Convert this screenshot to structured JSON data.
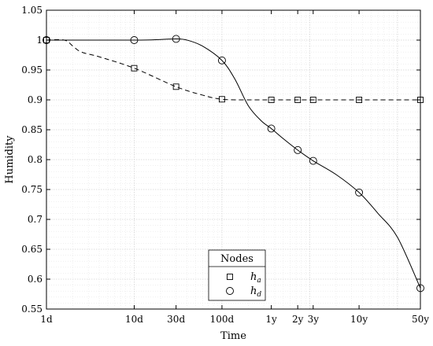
{
  "chart_data": {
    "type": "line",
    "xlabel": "Time",
    "ylabel": "Humidity",
    "x_scale": "log",
    "x_ticks": [
      {
        "label": "1d",
        "days": 1
      },
      {
        "label": "10d",
        "days": 10
      },
      {
        "label": "30d",
        "days": 30
      },
      {
        "label": "100d",
        "days": 100
      },
      {
        "label": "1y",
        "days": 365
      },
      {
        "label": "2y",
        "days": 730
      },
      {
        "label": "3y",
        "days": 1095
      },
      {
        "label": "10y",
        "days": 3650
      },
      {
        "label": "50y",
        "days": 18250
      }
    ],
    "y_ticks": [
      "0.55",
      "0.6",
      "0.65",
      "0.7",
      "0.75",
      "0.8",
      "0.85",
      "0.9",
      "0.95",
      "1",
      "1.05"
    ],
    "ylim": [
      0.55,
      1.05
    ],
    "grid": true,
    "legend": {
      "title": "Nodes",
      "position": "bottom-center",
      "entries": [
        {
          "base": "h",
          "sub": "a",
          "marker": "square",
          "series": 0
        },
        {
          "base": "h",
          "sub": "d",
          "marker": "circle",
          "series": 1
        }
      ]
    },
    "series": [
      {
        "name": "h_a",
        "marker": "square",
        "line_style": "dashed",
        "color": "#000000",
        "curve": [
          [
            1,
            1.0
          ],
          [
            1.6,
            1.0
          ],
          [
            2,
            0.99
          ],
          [
            2.5,
            0.98
          ],
          [
            4,
            0.972
          ],
          [
            10,
            0.953
          ],
          [
            30,
            0.922
          ],
          [
            60,
            0.908
          ],
          [
            100,
            0.901
          ],
          [
            200,
            0.9
          ],
          [
            365,
            0.9
          ],
          [
            18250,
            0.9
          ]
        ],
        "markers": [
          [
            1,
            1.0
          ],
          [
            10,
            0.953
          ],
          [
            30,
            0.922
          ],
          [
            100,
            0.901
          ],
          [
            365,
            0.9
          ],
          [
            730,
            0.9
          ],
          [
            1095,
            0.9
          ],
          [
            3650,
            0.9
          ],
          [
            18250,
            0.9
          ]
        ]
      },
      {
        "name": "h_d",
        "marker": "circle",
        "line_style": "solid",
        "color": "#000000",
        "curve": [
          [
            1,
            1.0
          ],
          [
            10,
            1.0
          ],
          [
            20,
            1.001
          ],
          [
            30,
            1.002
          ],
          [
            40,
            1.0
          ],
          [
            60,
            0.99
          ],
          [
            100,
            0.966
          ],
          [
            140,
            0.935
          ],
          [
            200,
            0.89
          ],
          [
            280,
            0.865
          ],
          [
            365,
            0.852
          ],
          [
            500,
            0.835
          ],
          [
            730,
            0.816
          ],
          [
            1095,
            0.798
          ],
          [
            2000,
            0.775
          ],
          [
            3650,
            0.745
          ],
          [
            6000,
            0.71
          ],
          [
            10000,
            0.67
          ],
          [
            18250,
            0.585
          ]
        ],
        "markers": [
          [
            1,
            1.0
          ],
          [
            10,
            1.0
          ],
          [
            30,
            1.002
          ],
          [
            100,
            0.966
          ],
          [
            365,
            0.852
          ],
          [
            730,
            0.816
          ],
          [
            1095,
            0.798
          ],
          [
            3650,
            0.745
          ],
          [
            18250,
            0.585
          ]
        ]
      }
    ]
  }
}
